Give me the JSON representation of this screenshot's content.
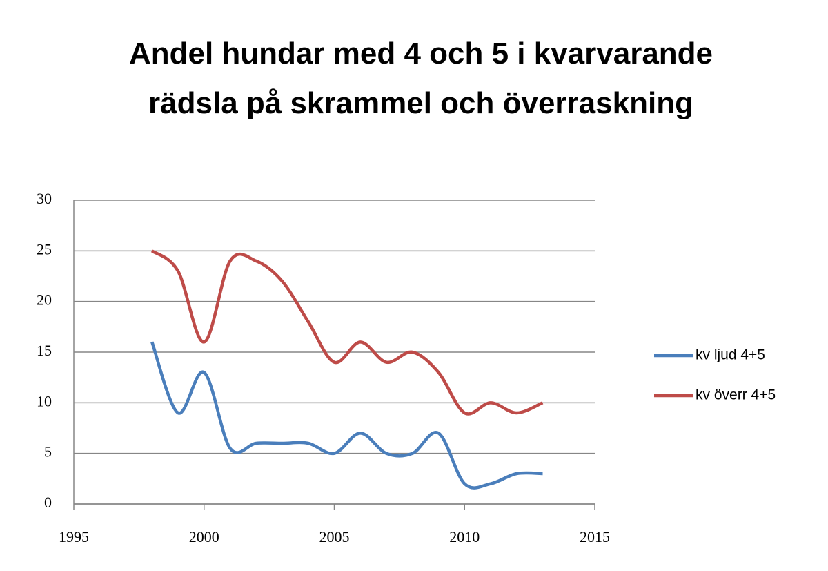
{
  "chart_data": {
    "type": "line",
    "title": "Andel hundar med 4 och 5 i kvarvarande rädsla på skrammel och överraskning",
    "x": [
      1998,
      1999,
      2000,
      2001,
      2002,
      2003,
      2004,
      2005,
      2006,
      2007,
      2008,
      2009,
      2010,
      2011,
      2012,
      2013
    ],
    "series": [
      {
        "name": "kv ljud 4+5",
        "color": "#4a7ebb",
        "values": [
          16,
          9,
          13,
          5.5,
          6,
          6,
          6,
          5,
          7,
          5,
          5,
          7,
          2,
          2,
          3,
          3
        ]
      },
      {
        "name": "kv överr 4+5",
        "color": "#be4b48",
        "values": [
          25,
          23,
          16,
          24,
          24,
          22,
          18,
          14,
          16,
          14,
          15,
          13,
          9,
          10,
          9,
          10
        ]
      }
    ],
    "xlim": [
      1995,
      2015
    ],
    "xticks": [
      1995,
      2000,
      2005,
      2010,
      2015
    ],
    "ylim": [
      0,
      30
    ],
    "yticks": [
      0,
      5,
      10,
      15,
      20,
      25,
      30
    ],
    "grid": true,
    "legend": "right",
    "smooth": true
  }
}
